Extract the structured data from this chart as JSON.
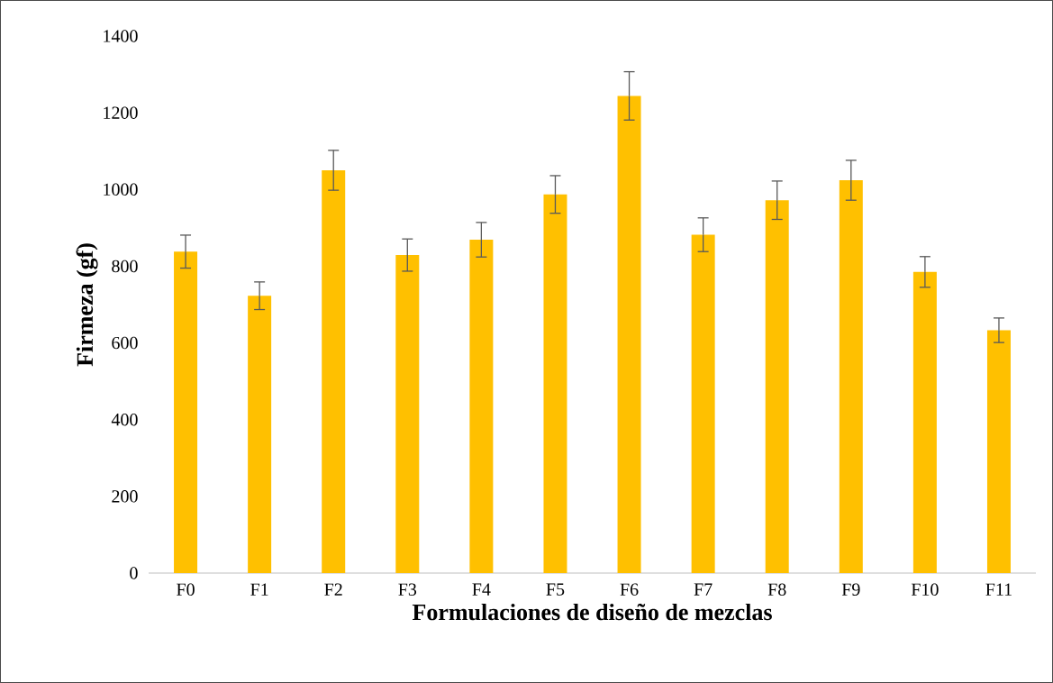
{
  "chart_data": {
    "type": "bar",
    "xlabel": "Formulaciones de diseño de mezclas",
    "ylabel": "Firmeza (gf)",
    "categories": [
      "F0",
      "F1",
      "F2",
      "F3",
      "F4",
      "F5",
      "F6",
      "F7",
      "F8",
      "F9",
      "F10",
      "F11"
    ],
    "values": [
      838,
      723,
      1050,
      829,
      869,
      987,
      1244,
      882,
      972,
      1024,
      785,
      633
    ],
    "errors": [
      43,
      36,
      52,
      42,
      45,
      49,
      63,
      44,
      50,
      52,
      40,
      32
    ],
    "color": "#ffc000",
    "ylim": [
      0,
      1400
    ],
    "yticks": [
      0,
      200,
      400,
      600,
      800,
      1000,
      1200,
      1400
    ]
  }
}
